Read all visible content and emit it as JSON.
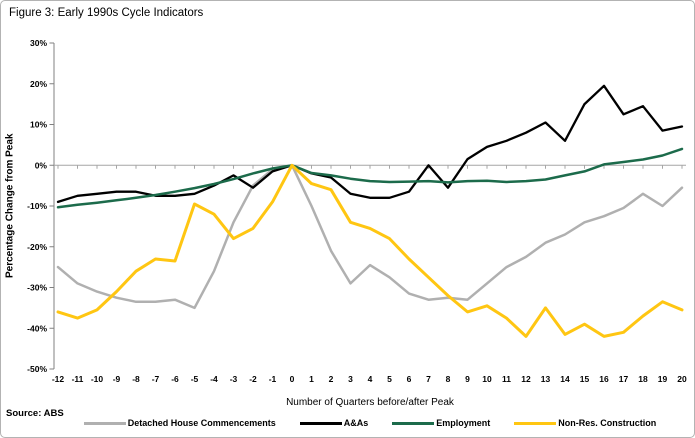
{
  "figure": {
    "title": "Figure 3: Early 1990s Cycle Indicators",
    "source": "Source: ABS"
  },
  "chart_data": {
    "type": "line",
    "title": "Figure 3: Early 1990s Cycle Indicators",
    "xlabel": "Number of Quarters before/after Peak",
    "ylabel": "Percentage Change from Peak",
    "grid": "zero-line-only",
    "legend_position": "bottom",
    "xlim": [
      -12,
      20
    ],
    "ylim": [
      -50,
      30
    ],
    "x": [
      -12,
      -11,
      -10,
      -9,
      -8,
      -7,
      -6,
      -5,
      -4,
      -3,
      -2,
      -1,
      0,
      1,
      2,
      3,
      4,
      5,
      6,
      7,
      8,
      9,
      10,
      11,
      12,
      13,
      14,
      15,
      16,
      17,
      18,
      19,
      20
    ],
    "yticks": [
      30,
      20,
      10,
      0,
      -10,
      -20,
      -30,
      -40,
      -50
    ],
    "ytick_labels": [
      "30%",
      "20%",
      "10%",
      "0%",
      "-10%",
      "-20%",
      "-30%",
      "-40%",
      "-50%"
    ],
    "series": [
      {
        "name": "Detached House Commencements",
        "color": "#b0b0b0",
        "width": 2.5,
        "values": [
          -25,
          -29,
          -31,
          -32.5,
          -33.5,
          -33.5,
          -33,
          -35,
          -26,
          -14,
          -5,
          -1,
          0,
          -10,
          -21,
          -29,
          -24.5,
          -27.5,
          -31.5,
          -33,
          -32.5,
          -33,
          -29,
          -25,
          -22.5,
          -19,
          -17,
          -14,
          -12.5,
          -10.5,
          -7,
          -10,
          -5.5
        ]
      },
      {
        "name": "A&As",
        "color": "#000000",
        "width": 2.3,
        "values": [
          -9,
          -7.5,
          -7,
          -6.5,
          -6.5,
          -7.5,
          -7.5,
          -7,
          -5,
          -2.5,
          -5.5,
          -1.5,
          0,
          -2,
          -3,
          -7,
          -8,
          -8,
          -6.5,
          0,
          -5.5,
          1.5,
          4.5,
          6,
          8,
          10.5,
          6,
          15,
          19.5,
          12.5,
          14.5,
          8.5,
          9.5
        ]
      },
      {
        "name": "Employment",
        "color": "#1c6b4b",
        "width": 2.5,
        "values": [
          -10.3,
          -9.7,
          -9.2,
          -8.6,
          -8,
          -7.3,
          -6.5,
          -5.6,
          -4.6,
          -3.4,
          -2,
          -0.8,
          0,
          -1.9,
          -2.5,
          -3.3,
          -3.9,
          -4.1,
          -4,
          -3.9,
          -4.2,
          -3.9,
          -3.8,
          -4.1,
          -3.9,
          -3.5,
          -2.5,
          -1.5,
          0.2,
          0.8,
          1.4,
          2.4,
          4
        ]
      },
      {
        "name": "Non-Res. Construction",
        "color": "#ffc612",
        "width": 3,
        "values": [
          -36,
          -37.5,
          -35.5,
          -31,
          -26,
          -23,
          -23.5,
          -9.5,
          -12,
          -18,
          -15.5,
          -9,
          0,
          -4.5,
          -6,
          -14,
          -15.5,
          -18,
          -23,
          -27.5,
          -32,
          -36,
          -34.5,
          -37.5,
          -42,
          -35,
          -41.5,
          -39,
          -42,
          -41,
          -37,
          -33.5,
          -35.5
        ]
      }
    ],
    "axis_color": "#808080",
    "zero_line_color": "#a6a6a6"
  }
}
